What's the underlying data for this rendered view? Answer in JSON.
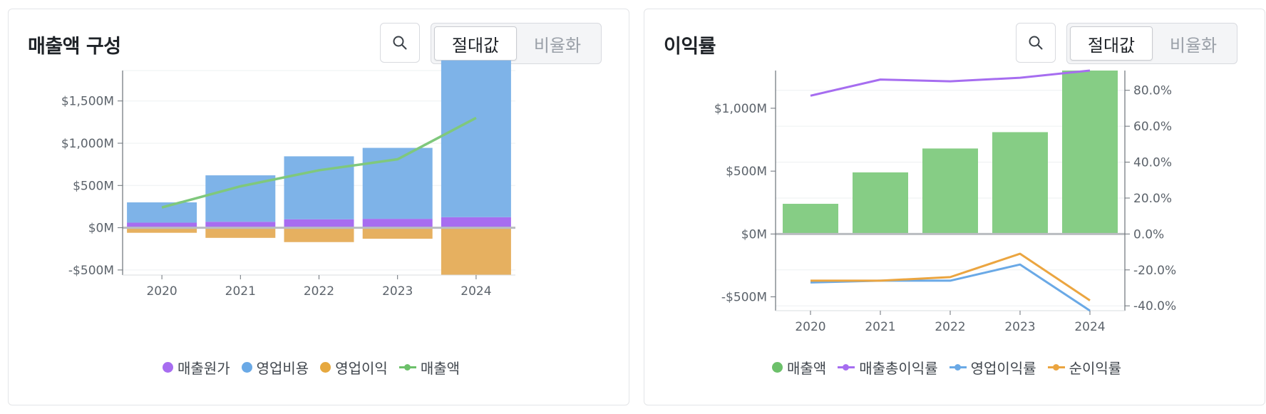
{
  "colors": {
    "cogs": "#a76df0",
    "opex": "#7eb3e8",
    "opinc": "#e6b060",
    "revenue": "#7fc87c",
    "revenue_bar": "#86cd85",
    "gross_margin": "#a66df0",
    "op_margin": "#6aa9e6",
    "net_margin": "#eba540"
  },
  "card1": {
    "title": "매출액 구성",
    "toggle": {
      "absolute": "절대값",
      "ratio": "비율화"
    },
    "legend": [
      "매출원가",
      "영업비용",
      "영업이익",
      "매출액"
    ]
  },
  "card2": {
    "title": "이익률",
    "toggle": {
      "absolute": "절대값",
      "ratio": "비율화"
    },
    "legend": [
      "매출액",
      "매출총이익률",
      "영업이익률",
      "순이익률"
    ]
  },
  "chart_data": [
    {
      "type": "bar",
      "stacked": true,
      "title": "매출액 구성",
      "categories": [
        "2020",
        "2021",
        "2022",
        "2023",
        "2024"
      ],
      "series": [
        {
          "name": "매출원가",
          "kind": "bar",
          "values": [
            60,
            70,
            100,
            105,
            125
          ]
        },
        {
          "name": "영업비용",
          "kind": "bar",
          "values": [
            240,
            550,
            745,
            840,
            1855
          ]
        },
        {
          "name": "영업이익",
          "kind": "bar",
          "values": [
            -60,
            -120,
            -170,
            -130,
            -560
          ]
        },
        {
          "name": "매출액",
          "kind": "line",
          "values": [
            240,
            490,
            680,
            810,
            1300
          ]
        }
      ],
      "ylim": [
        -560,
        1860
      ],
      "yticks": [
        -500,
        0,
        500,
        1000,
        1500
      ],
      "ytick_labels": [
        "-$500M",
        "$0M",
        "$500M",
        "$1,000M",
        "$1,500M"
      ],
      "legend_position": "bottom"
    },
    {
      "type": "bar",
      "title": "이익률",
      "categories": [
        "2020",
        "2021",
        "2022",
        "2023",
        "2024"
      ],
      "series": [
        {
          "name": "매출액",
          "kind": "bar",
          "axis": "left",
          "values": [
            240,
            490,
            680,
            810,
            1300
          ]
        },
        {
          "name": "매출총이익률",
          "kind": "line",
          "axis": "right",
          "values": [
            77,
            86,
            85,
            87,
            91
          ]
        },
        {
          "name": "영업이익률",
          "kind": "line",
          "axis": "right",
          "values": [
            -27,
            -26,
            -26,
            -17,
            -43
          ]
        },
        {
          "name": "순이익률",
          "kind": "line",
          "axis": "right",
          "values": [
            -26,
            -26,
            -24,
            -11,
            -37
          ]
        }
      ],
      "ylim_left": [
        -610,
        1300
      ],
      "yticks_left": [
        -500,
        0,
        500,
        1000
      ],
      "ytick_labels_left": [
        "-$500M",
        "$0M",
        "$500M",
        "$1,000M"
      ],
      "ylim_right": [
        -42.7,
        91
      ],
      "yticks_right": [
        -40,
        -20,
        0,
        20,
        40,
        60,
        80
      ],
      "ytick_labels_right": [
        "-40.0%",
        "-20.0%",
        "0.0%",
        "20.0%",
        "40.0%",
        "60.0%",
        "80.0%"
      ],
      "legend_position": "bottom"
    }
  ]
}
